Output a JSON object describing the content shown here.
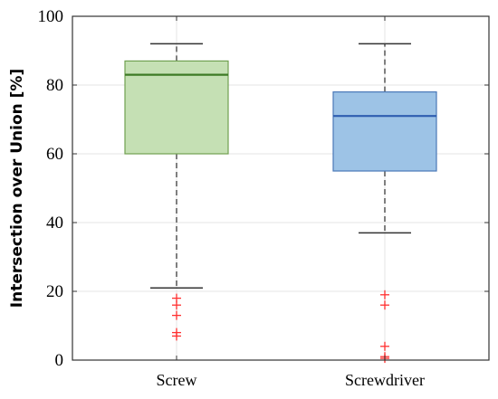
{
  "chart_data": {
    "type": "box",
    "ylabel": "Intersection over Union [%]",
    "xlabel": "",
    "ylim": [
      0,
      100
    ],
    "yticks": [
      0,
      20,
      40,
      60,
      80,
      100
    ],
    "grid": true,
    "categories": [
      "Screw",
      "Screwdriver"
    ],
    "boxes": [
      {
        "category": "Screw",
        "whisker_low": 21,
        "q1": 60,
        "median": 83,
        "q3": 87,
        "whisker_high": 92,
        "outliers": [
          18,
          16,
          13,
          8,
          7
        ],
        "fill": "#c5e0b4",
        "stroke": "#70a050",
        "median_color": "#3d7a25"
      },
      {
        "category": "Screwdriver",
        "whisker_low": 37,
        "q1": 55,
        "median": 71,
        "q3": 78,
        "whisker_high": 92,
        "outliers": [
          19,
          16,
          4,
          1,
          0.5
        ],
        "fill": "#9dc3e6",
        "stroke": "#4a78b8",
        "median_color": "#2e5db0"
      }
    ],
    "outlier_color": "#ff3030"
  }
}
